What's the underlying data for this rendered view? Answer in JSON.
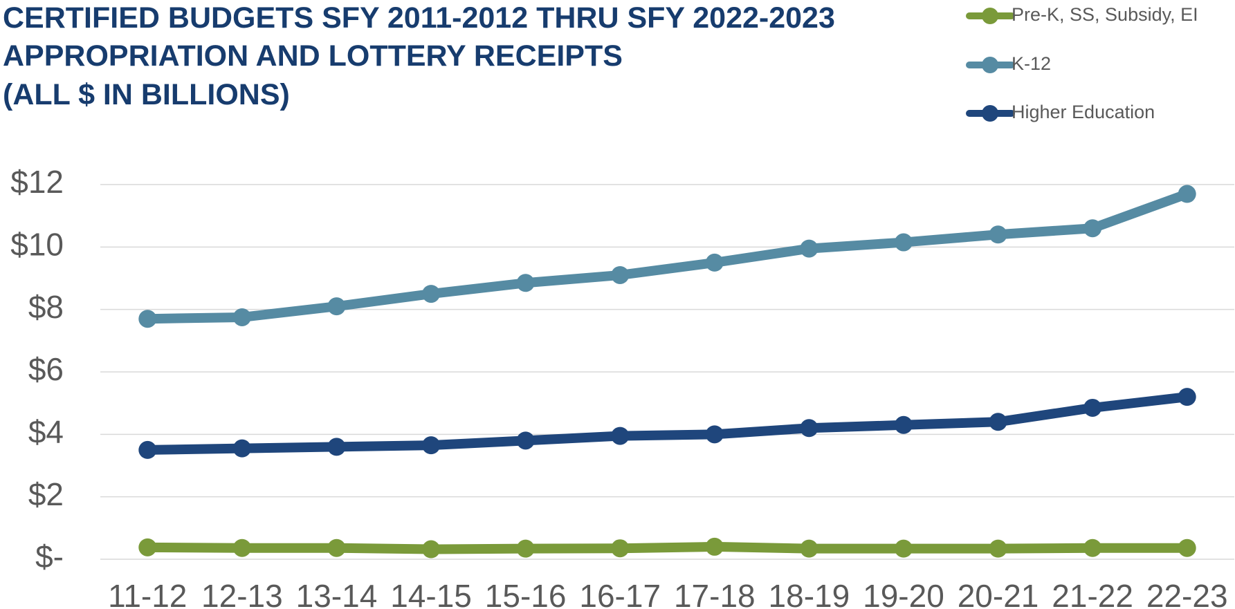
{
  "chart_data": {
    "type": "line",
    "title_lines": [
      "CERTIFIED BUDGETS SFY 2011-2012 THRU SFY 2022-2023",
      "APPROPRIATION AND LOTTERY RECEIPTS",
      "(ALL $ IN BILLIONS)"
    ],
    "categories": [
      "11-12",
      "12-13",
      "13-14",
      "14-15",
      "15-16",
      "16-17",
      "17-18",
      "18-19",
      "19-20",
      "20-21",
      "21-22",
      "22-23"
    ],
    "series": [
      {
        "name": "Pre-K, SS, Subsidy, EI",
        "color": "#7a9a3a",
        "values": [
          0.38,
          0.36,
          0.36,
          0.32,
          0.34,
          0.35,
          0.4,
          0.34,
          0.34,
          0.34,
          0.36,
          0.36
        ]
      },
      {
        "name": "K-12",
        "color": "#568ba3",
        "values": [
          7.7,
          7.75,
          8.1,
          8.5,
          8.85,
          9.1,
          9.5,
          9.95,
          10.15,
          10.4,
          10.6,
          11.7
        ]
      },
      {
        "name": "Higher Education",
        "color": "#1f467c",
        "values": [
          3.5,
          3.55,
          3.6,
          3.65,
          3.8,
          3.95,
          4.0,
          4.2,
          4.3,
          4.4,
          4.85,
          5.2
        ]
      }
    ],
    "ylim": [
      0,
      12
    ],
    "yticks": [
      {
        "value": 0,
        "label": "$-"
      },
      {
        "value": 2,
        "label": "$2"
      },
      {
        "value": 4,
        "label": "$4"
      },
      {
        "value": 6,
        "label": "$6"
      },
      {
        "value": 8,
        "label": "$8"
      },
      {
        "value": 10,
        "label": "$10"
      },
      {
        "value": 12,
        "label": "$12"
      }
    ],
    "grid": true
  }
}
